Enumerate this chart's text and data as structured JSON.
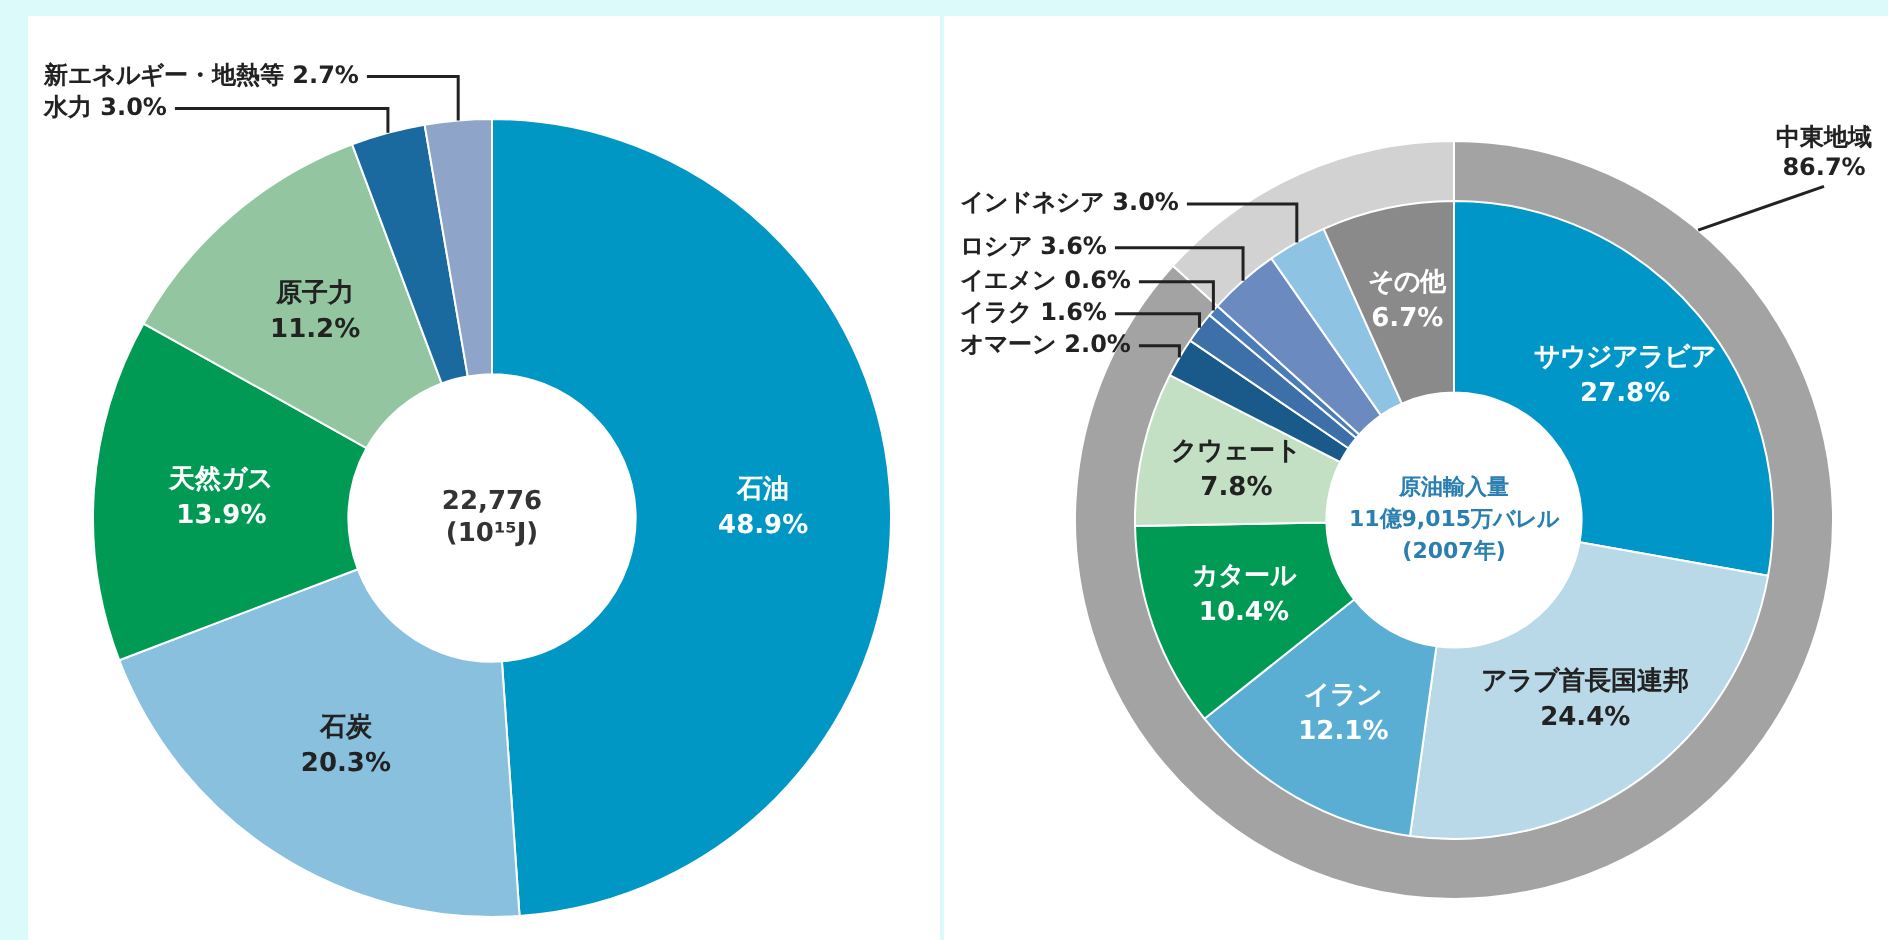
{
  "chart_data": [
    {
      "type": "donut",
      "categories": [
        "石油",
        "石炭",
        "天然ガス",
        "原子力",
        "水力",
        "新エネルギー・地熱等"
      ],
      "values": [
        48.9,
        20.3,
        13.9,
        11.2,
        3.0,
        2.7
      ],
      "value_labels": [
        "48.9%",
        "20.3%",
        "13.9%",
        "11.2%",
        "3.0%",
        "2.7%"
      ],
      "colors": [
        "#0097c4",
        "#88c0de",
        "#009a55",
        "#93c6a0",
        "#1a6aa0",
        "#8ea4c8"
      ],
      "annotations": [
        "22,776",
        "(10¹⁵J)"
      ]
    },
    {
      "type": "donut",
      "categories": [
        "サウジアラビア",
        "アラブ首長国連邦",
        "イラン",
        "カタール",
        "クウェート",
        "オマーン",
        "イラク",
        "イエメン",
        "ロシア",
        "インドネシア",
        "その他"
      ],
      "values": [
        27.8,
        24.4,
        12.1,
        10.4,
        7.8,
        2.0,
        1.6,
        0.6,
        3.6,
        3.0,
        6.7
      ],
      "value_labels": [
        "27.8%",
        "24.4%",
        "12.1%",
        "10.4%",
        "7.8%",
        "2.0%",
        "1.6%",
        "0.6%",
        "3.6%",
        "3.0%",
        "6.7%"
      ],
      "colors": [
        "#0097c8",
        "#b9d8e8",
        "#5aaed3",
        "#009a55",
        "#c4e0c4",
        "#1a5a8a",
        "#3d6fa8",
        "#4a7cb8",
        "#6a8ac0",
        "#8ec3e3",
        "#8a8a8a"
      ],
      "annotations": [
        "原油輸入量",
        "11億9,015万バレル",
        "(2007年)"
      ]
    },
    {
      "type": "donut",
      "categories": [
        "中東地域",
        null
      ],
      "values": [
        86.7,
        13.3
      ],
      "value_labels": [
        "86.7%",
        null
      ],
      "colors": [
        "#a3a3a3",
        "#d2d2d2"
      ]
    }
  ]
}
